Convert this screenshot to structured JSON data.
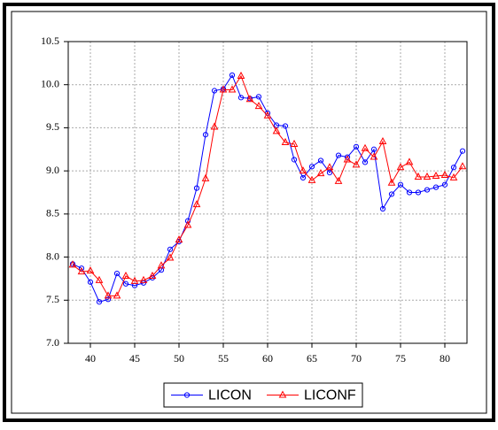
{
  "chart_data": {
    "type": "line",
    "x": [
      38,
      39,
      40,
      41,
      42,
      43,
      44,
      45,
      46,
      47,
      48,
      49,
      50,
      51,
      52,
      53,
      54,
      55,
      56,
      57,
      58,
      59,
      60,
      61,
      62,
      63,
      64,
      65,
      66,
      67,
      68,
      69,
      70,
      71,
      72,
      73,
      74,
      75,
      76,
      77,
      78,
      79,
      80,
      81,
      82
    ],
    "series": [
      {
        "name": "LICON",
        "color": "#0000ff",
        "marker": "circle",
        "values": [
          7.92,
          7.87,
          7.71,
          7.48,
          7.51,
          7.81,
          7.69,
          7.67,
          7.7,
          7.76,
          7.85,
          8.09,
          8.18,
          8.42,
          8.8,
          9.42,
          9.93,
          9.95,
          10.11,
          9.85,
          9.84,
          9.86,
          9.67,
          9.53,
          9.52,
          9.13,
          8.92,
          9.05,
          9.12,
          8.98,
          9.18,
          9.16,
          9.28,
          9.1,
          9.25,
          8.56,
          8.73,
          8.84,
          8.75,
          8.75,
          8.78,
          8.81,
          8.84,
          9.04,
          9.23
        ]
      },
      {
        "name": "LICONF",
        "color": "#ff0000",
        "marker": "triangle",
        "values": [
          7.91,
          7.83,
          7.84,
          7.73,
          7.55,
          7.55,
          7.78,
          7.72,
          7.73,
          7.78,
          7.9,
          7.99,
          8.2,
          8.37,
          8.61,
          8.91,
          9.51,
          9.94,
          9.94,
          10.1,
          9.83,
          9.75,
          9.64,
          9.46,
          9.33,
          9.31,
          9.0,
          8.89,
          8.97,
          9.04,
          8.88,
          9.13,
          9.07,
          9.26,
          9.16,
          9.34,
          8.86,
          9.04,
          9.1,
          8.93,
          8.93,
          8.94,
          8.95,
          8.92,
          9.05
        ]
      }
    ],
    "xlim": [
      37.5,
      82.5
    ],
    "xticks": [
      40,
      45,
      50,
      55,
      60,
      65,
      70,
      75,
      80
    ],
    "ylim": [
      7.0,
      10.5
    ],
    "yticks": [
      {
        "value": 7,
        "label": "7.0"
      },
      7.5,
      {
        "value": 8,
        "label": "8.0"
      },
      8.5,
      {
        "value": 9,
        "label": "9.0"
      },
      9.5,
      {
        "value": 10,
        "label": "10.0"
      },
      10.5
    ],
    "grid": true,
    "legend": "bottom"
  }
}
